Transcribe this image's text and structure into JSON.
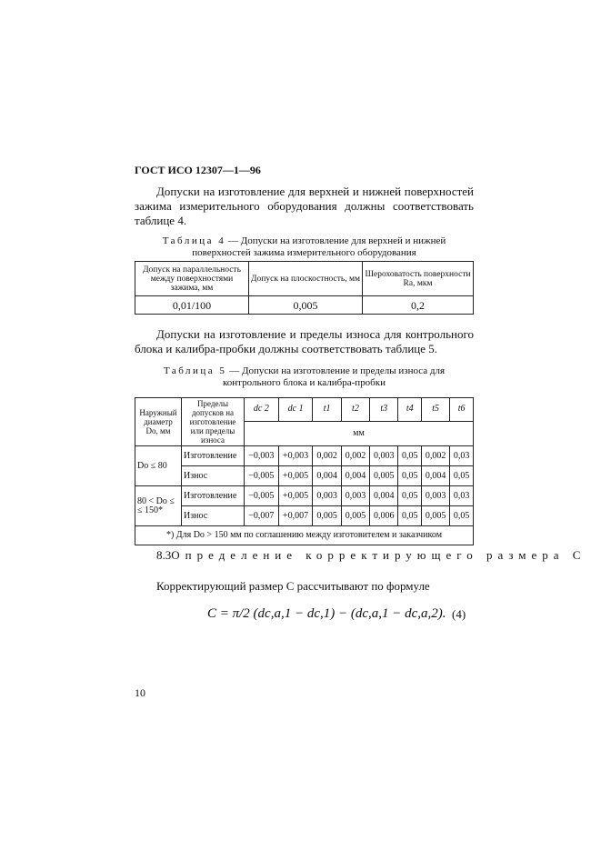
{
  "header": "ГОСТ ИСО 12307—1—96",
  "para1": "Допуски на изготовление для верхней и нижней поверхностей зажима измерительного оборудования должны соответствовать таблице 4.",
  "table4": {
    "label": "Таблица 4",
    "caption": " — Допуски на изготовление для верхней и нижней поверхностей зажима измерительного оборудования",
    "headers": [
      "Допуск на параллельность между поверхностями зажима, мм",
      "Допуск на плоскостность, мм",
      "Шероховатость поверхности Ra, мкм"
    ],
    "row": [
      "0,01/100",
      "0,005",
      "0,2"
    ]
  },
  "para2": "Допуски на изготовление и пределы износа для контрольного блока и калибра-пробки должны соответствовать таблице 5.",
  "table5": {
    "label": "Таблица 5",
    "caption": " — Допуски на изготовление и пределы износа для контрольного блока и калибра-пробки",
    "h1": "Наружный диаметр Dо, мм",
    "h2": "Пределы допусков на изготовление или пределы износа",
    "cols": [
      "dc 2",
      "dc 1",
      "t1",
      "t2",
      "t3",
      "t4",
      "t5",
      "t6"
    ],
    "unit": "мм",
    "groups": [
      {
        "d": "Dо ≤ 80",
        "rows": [
          {
            "type": "Изготовление",
            "v": [
              "−0,003",
              "+0,003",
              "0,002",
              "0,002",
              "0,003",
              "0,05",
              "0,002",
              "0,03"
            ]
          },
          {
            "type": "Износ",
            "v": [
              "−0,005",
              "+0,005",
              "0,004",
              "0,004",
              "0,005",
              "0,05",
              "0,004",
              "0,05"
            ]
          }
        ]
      },
      {
        "d": "80 < Dо ≤ ≤ 150*",
        "rows": [
          {
            "type": "Изготовление",
            "v": [
              "−0,005",
              "+0,005",
              "0,003",
              "0,003",
              "0,004",
              "0,05",
              "0,003",
              "0,03"
            ]
          },
          {
            "type": "Износ",
            "v": [
              "−0,007",
              "+0,007",
              "0,005",
              "0,005",
              "0,006",
              "0,05",
              "0,005",
              "0,05"
            ]
          }
        ]
      }
    ],
    "footnote": "*) Для Dо > 150 мм по соглашению между изготовителем и заказчиком"
  },
  "section": {
    "num": "8.3",
    "title": "Определение корректирующего размера C"
  },
  "para3": "Корректирующий размер C рассчитывают по формуле",
  "formula": "C = π/2 (dc,a,1 − dc,1) − (dc,a,1 − dc,a,2).",
  "formula_num": "(4)",
  "page_num": "10"
}
